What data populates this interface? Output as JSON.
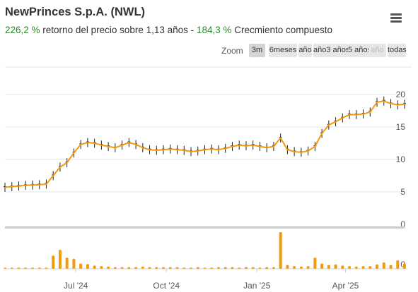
{
  "header": {
    "title": "NewPrinces S.p.A. (NWL)",
    "return_value": "226,2 %",
    "return_text": " retorno del precio sobre 1,13 años - ",
    "cagr_value": "184,3 %",
    "cagr_text": " Crecmiento compuesto"
  },
  "toolbar": {
    "menu_icon": "hamburger-menu-icon",
    "zoom_label": "Zoom",
    "zoom_buttons": [
      "3m",
      "6meses",
      "año",
      "año3 años",
      "5 años",
      "año",
      "todas"
    ]
  },
  "colors": {
    "line": "#f49a0c",
    "candle": "#222222",
    "volume": "#f49a0c",
    "grid": "#e6e6e6"
  },
  "chart_data": {
    "type": "line",
    "title": "NewPrinces S.p.A. (NWL)",
    "xlabel": "",
    "ylabel": "",
    "x_tick_labels": [
      "Jul '24",
      "Oct '24",
      "Jan '25",
      "Apr '25"
    ],
    "y_tick_labels": [
      "0",
      "5",
      "10",
      "15",
      "20"
    ],
    "ylim": [
      0,
      20
    ],
    "volume_tick_label": "0",
    "grid": true,
    "series": [
      {
        "x": [
          "2024-04-20",
          "2024-04-27",
          "2024-05-04",
          "2024-05-11",
          "2024-05-18",
          "2024-05-25",
          "2024-06-01",
          "2024-06-08",
          "2024-06-15",
          "2024-06-22",
          "2024-06-29",
          "2024-07-06",
          "2024-07-13",
          "2024-07-20",
          "2024-07-27",
          "2024-08-03",
          "2024-08-10",
          "2024-08-17",
          "2024-08-24",
          "2024-08-31",
          "2024-09-07",
          "2024-09-14",
          "2024-09-21",
          "2024-09-28",
          "2024-10-05",
          "2024-10-12",
          "2024-10-19",
          "2024-10-26",
          "2024-11-02",
          "2024-11-09",
          "2024-11-16",
          "2024-11-23",
          "2024-11-30",
          "2024-12-07",
          "2024-12-14",
          "2024-12-21",
          "2024-12-28",
          "2025-01-04",
          "2025-01-11",
          "2025-01-18",
          "2025-01-25",
          "2025-02-01",
          "2025-02-08",
          "2025-02-15",
          "2025-02-22",
          "2025-03-01",
          "2025-03-08",
          "2025-03-15",
          "2025-03-22",
          "2025-03-29",
          "2025-04-05",
          "2025-04-12",
          "2025-04-19",
          "2025-04-26",
          "2025-05-03",
          "2025-05-10",
          "2025-05-17",
          "2025-05-24",
          "2025-05-31"
        ],
        "close": [
          5.7,
          5.8,
          5.9,
          6.0,
          6.05,
          6.1,
          6.2,
          7.5,
          8.8,
          9.5,
          11.0,
          12.3,
          12.6,
          12.5,
          12.2,
          12.0,
          11.8,
          12.2,
          12.6,
          12.3,
          11.8,
          11.5,
          11.4,
          11.5,
          11.6,
          11.5,
          11.4,
          11.2,
          11.3,
          11.5,
          11.6,
          11.5,
          11.7,
          12.0,
          12.2,
          12.1,
          12.2,
          12.0,
          11.8,
          12.0,
          13.3,
          11.5,
          11.2,
          11.1,
          11.3,
          12.0,
          14.0,
          15.3,
          15.8,
          16.4,
          16.9,
          16.9,
          17.0,
          17.3,
          18.8,
          19.0,
          18.6,
          18.4,
          18.5
        ],
        "volume": [
          0.2,
          0.2,
          0.2,
          0.2,
          0.2,
          0.2,
          0.2,
          2.5,
          3.6,
          2.1,
          1.9,
          1.0,
          0.9,
          0.6,
          0.5,
          0.4,
          0.3,
          0.3,
          0.3,
          0.3,
          0.4,
          0.3,
          0.3,
          0.3,
          0.3,
          0.3,
          0.2,
          0.2,
          0.3,
          0.2,
          0.2,
          0.3,
          0.3,
          0.3,
          0.2,
          0.3,
          0.3,
          0.2,
          0.3,
          0.3,
          7.0,
          0.7,
          0.5,
          0.4,
          0.5,
          2.1,
          1.0,
          0.7,
          0.8,
          0.6,
          0.5,
          0.4,
          0.5,
          0.5,
          0.8,
          1.2,
          0.7,
          1.6,
          1.0
        ]
      }
    ]
  }
}
